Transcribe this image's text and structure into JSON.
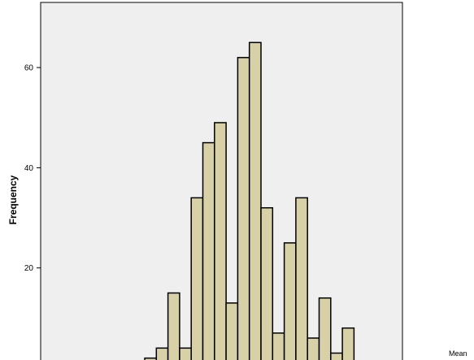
{
  "chart_data": {
    "type": "bar",
    "title": "",
    "xlabel": "",
    "ylabel": "Frequency",
    "ylim": [
      0,
      73
    ],
    "y_ticks": [
      20,
      40,
      60
    ],
    "grid": false,
    "values": [
      2,
      4,
      15,
      4,
      34,
      45,
      49,
      13,
      62,
      65,
      32,
      7,
      25,
      34,
      6,
      14,
      3,
      8
    ],
    "stat_label": "Mean"
  },
  "colors": {
    "plot_background": "#efefef",
    "bar_fill": "#d8d0a6",
    "bar_stroke": "#000000"
  }
}
